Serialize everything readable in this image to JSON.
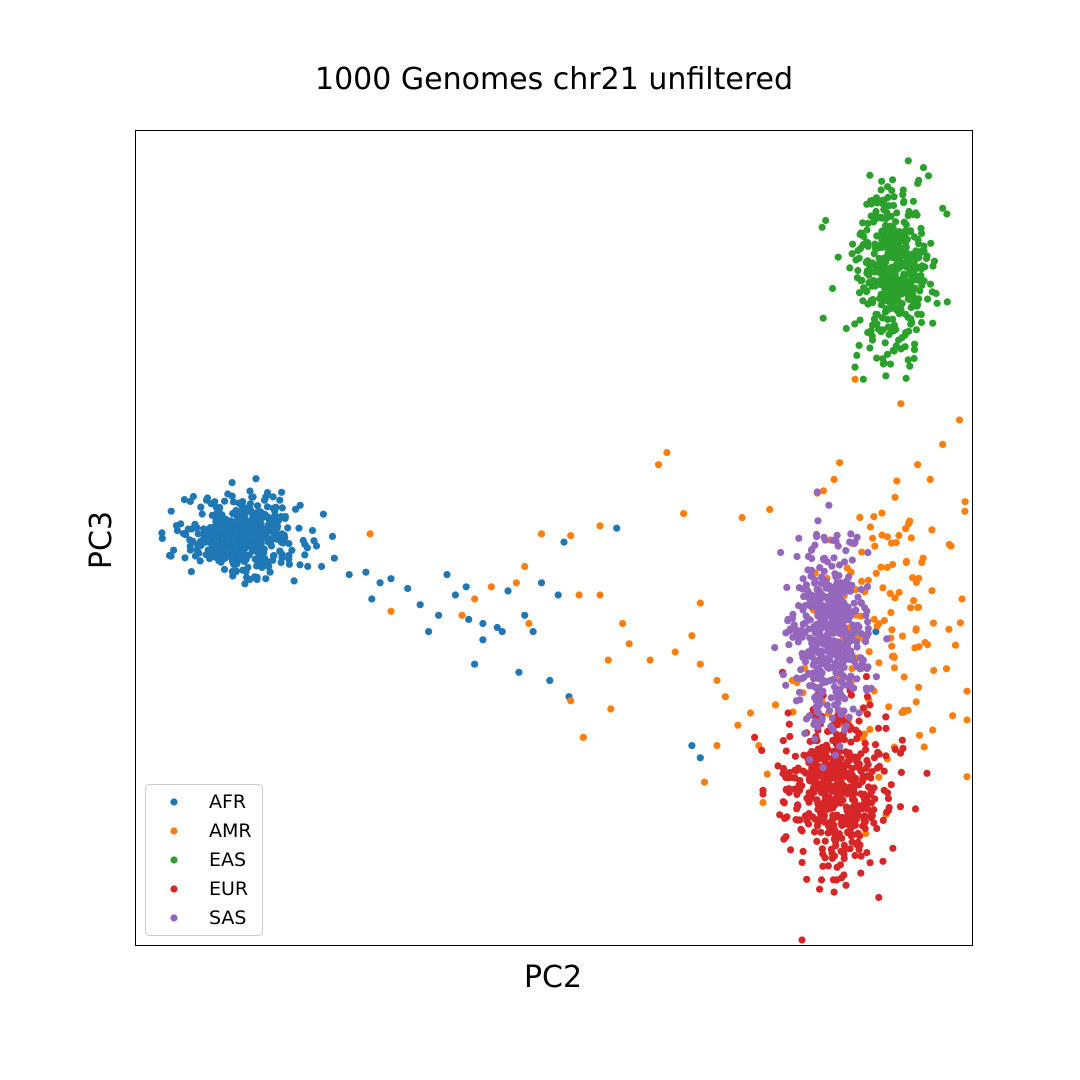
{
  "chart_data": {
    "type": "scatter",
    "title": "1000 Genomes chr21 unfiltered",
    "xlabel": "PC2",
    "ylabel": "PC3",
    "xlim": [
      -0.05,
      0.05
    ],
    "ylim": [
      -0.05,
      0.05
    ],
    "ticks_shown": false,
    "grid": false,
    "legend_position": "lower-left",
    "series": [
      {
        "name": "AFR",
        "color": "#1f77b4",
        "cluster": {
          "center": [
            -0.0375,
            0.0002
          ],
          "spread": [
            0.0032,
            0.0022
          ],
          "count": 480
        },
        "points": [
          [
            -0.0455,
            -0.0015
          ],
          [
            -0.0435,
            0.0045
          ],
          [
            -0.0385,
            0.0068
          ],
          [
            -0.0325,
            0.0037
          ],
          [
            -0.0305,
            0.0012
          ],
          [
            -0.0265,
            0.0002
          ],
          [
            -0.0245,
            -0.0045
          ],
          [
            -0.0225,
            -0.0042
          ],
          [
            -0.0218,
            -0.0075
          ],
          [
            -0.0195,
            -0.005
          ],
          [
            -0.0175,
            -0.0062
          ],
          [
            -0.016,
            -0.0082
          ],
          [
            -0.015,
            -0.0115
          ],
          [
            -0.0138,
            -0.0095
          ],
          [
            -0.0128,
            -0.0045
          ],
          [
            -0.0118,
            -0.007
          ],
          [
            -0.0105,
            -0.006
          ],
          [
            -0.0102,
            -0.01
          ],
          [
            -0.0085,
            -0.0105
          ],
          [
            -0.0062,
            -0.0115
          ],
          [
            -0.0055,
            -0.0065
          ],
          [
            -0.0035,
            -0.0095
          ],
          [
            -0.0025,
            -0.0115
          ],
          [
            -0.0015,
            -0.0055
          ],
          [
            0.0005,
            -0.007
          ],
          [
            0.0012,
            -0.0005
          ],
          [
            -0.0005,
            -0.0175
          ],
          [
            0.0018,
            -0.0195
          ],
          [
            -0.0042,
            -0.0165
          ],
          [
            -0.0068,
            -0.011
          ],
          [
            -0.0095,
            -0.0155
          ],
          [
            -0.0085,
            -0.0125
          ],
          [
            -0.0208,
            -0.0055
          ],
          [
            -0.0278,
            -0.0035
          ],
          [
            -0.0295,
            -0.0012
          ],
          [
            0.0165,
            -0.0255
          ],
          [
            0.0175,
            -0.027
          ],
          [
            0.0385,
            -0.0115
          ],
          [
            0.0075,
            0.0012
          ]
        ]
      },
      {
        "name": "AMR",
        "color": "#ff7f0e",
        "cluster": {
          "center": [
            0.0395,
            -0.0115
          ],
          "spread": [
            0.0048,
            0.0085
          ],
          "count": 140
        },
        "points": [
          [
            0.0415,
            0.0165
          ],
          [
            0.0485,
            0.0145
          ],
          [
            0.0465,
            0.0115
          ],
          [
            0.0435,
            0.009
          ],
          [
            0.045,
            0.0072
          ],
          [
            0.0408,
            0.005
          ],
          [
            0.0452,
            0.001
          ],
          [
            0.0475,
            -0.001
          ],
          [
            0.044,
            -0.003
          ],
          [
            0.0488,
            -0.0075
          ],
          [
            0.041,
            0.007
          ],
          [
            0.0335,
            0.0072
          ],
          [
            0.0315,
            0.0055
          ],
          [
            0.0258,
            0.0035
          ],
          [
            0.0225,
            0.0025
          ],
          [
            0.0155,
            0.003
          ],
          [
            0.0125,
            0.009
          ],
          [
            0.0055,
            0.0015
          ],
          [
            0.002,
            0.0003
          ],
          [
            -0.0015,
            0.0005
          ],
          [
            -0.0035,
            -0.0035
          ],
          [
            -0.0045,
            -0.0055
          ],
          [
            -0.0075,
            -0.006
          ],
          [
            -0.0095,
            -0.0075
          ],
          [
            -0.022,
            0.0005
          ],
          [
            -0.0195,
            -0.009
          ],
          [
            -0.011,
            -0.0095
          ],
          [
            -0.003,
            -0.0105
          ],
          [
            0.0055,
            -0.007
          ],
          [
            0.0082,
            -0.0105
          ],
          [
            0.0065,
            -0.015
          ],
          [
            0.0115,
            -0.015
          ],
          [
            0.0145,
            -0.014
          ],
          [
            0.0175,
            -0.0155
          ],
          [
            0.0195,
            -0.0175
          ],
          [
            0.0205,
            -0.0195
          ],
          [
            0.0235,
            -0.0215
          ],
          [
            0.022,
            -0.023
          ],
          [
            0.0245,
            -0.0255
          ],
          [
            0.0255,
            -0.029
          ],
          [
            0.0265,
            -0.0205
          ],
          [
            0.0285,
            -0.0175
          ],
          [
            0.03,
            -0.016
          ],
          [
            0.0195,
            -0.0255
          ],
          [
            0.018,
            -0.03
          ],
          [
            0.025,
            -0.0325
          ],
          [
            0.0068,
            -0.021
          ],
          [
            0.0035,
            -0.0245
          ],
          [
            0.002,
            -0.02
          ],
          [
            0.0175,
            -0.008
          ],
          [
            0.0165,
            -0.012
          ],
          [
            0.036,
            0.0195
          ],
          [
            0.0135,
            0.0105
          ],
          [
            0.003,
            -0.007
          ],
          [
            0.009,
            -0.013
          ]
        ]
      },
      {
        "name": "EAS",
        "color": "#2ca02c",
        "cluster": {
          "center": [
            0.0405,
            0.0325
          ],
          "spread": [
            0.0022,
            0.0048
          ],
          "count": 430
        },
        "points": [
          [
            0.0442,
            0.0455
          ],
          [
            0.0448,
            0.0445
          ],
          [
            0.0465,
            0.0405
          ],
          [
            0.047,
            0.0398
          ],
          [
            0.0325,
            0.039
          ],
          [
            0.0322,
            0.027
          ],
          [
            0.036,
            0.021
          ],
          [
            0.037,
            0.0195
          ],
          [
            0.0395,
            0.0215
          ],
          [
            0.042,
            0.0235
          ],
          [
            0.034,
            0.0345
          ],
          [
            0.0455,
            0.034
          ],
          [
            0.0435,
            0.0275
          ],
          [
            0.0395,
            0.0415
          ],
          [
            0.0405,
            0.044
          ]
        ]
      },
      {
        "name": "EUR",
        "color": "#d62728",
        "cluster": {
          "center": [
            0.0335,
            -0.0305
          ],
          "spread": [
            0.003,
            0.0048
          ],
          "count": 500
        },
        "points": [
          [
            0.0335,
            -0.0435
          ],
          [
            0.0338,
            -0.042
          ],
          [
            0.032,
            -0.042
          ],
          [
            0.0298,
            -0.0385
          ],
          [
            0.0275,
            -0.037
          ],
          [
            0.0395,
            -0.031
          ],
          [
            0.04,
            -0.032
          ],
          [
            0.0378,
            -0.0205
          ],
          [
            0.0375,
            -0.0195
          ],
          [
            0.024,
            -0.0245
          ],
          [
            0.025,
            -0.031
          ],
          [
            0.0268,
            -0.028
          ],
          [
            0.027,
            -0.034
          ],
          [
            0.036,
            -0.039
          ],
          [
            0.028,
            -0.0215
          ],
          [
            0.0365,
            -0.0225
          ]
        ]
      },
      {
        "name": "SAS",
        "color": "#9467bd",
        "cluster": {
          "center": [
            0.0328,
            -0.012
          ],
          "spread": [
            0.0022,
            0.0055
          ],
          "count": 490
        },
        "points": [
          [
            0.0308,
            -0.0015
          ],
          [
            0.034,
            -0.001
          ],
          [
            0.0355,
            0.0005
          ],
          [
            0.036,
            -0.0005
          ],
          [
            0.0298,
            -0.005
          ],
          [
            0.0375,
            -0.006
          ],
          [
            0.028,
            -0.01
          ],
          [
            0.0282,
            -0.015
          ],
          [
            0.037,
            -0.015
          ],
          [
            0.029,
            -0.02
          ],
          [
            0.0365,
            -0.0215
          ],
          [
            0.032,
            -0.0225
          ],
          [
            0.0345,
            -0.0195
          ],
          [
            0.03,
            -0.024
          ]
        ]
      }
    ]
  }
}
